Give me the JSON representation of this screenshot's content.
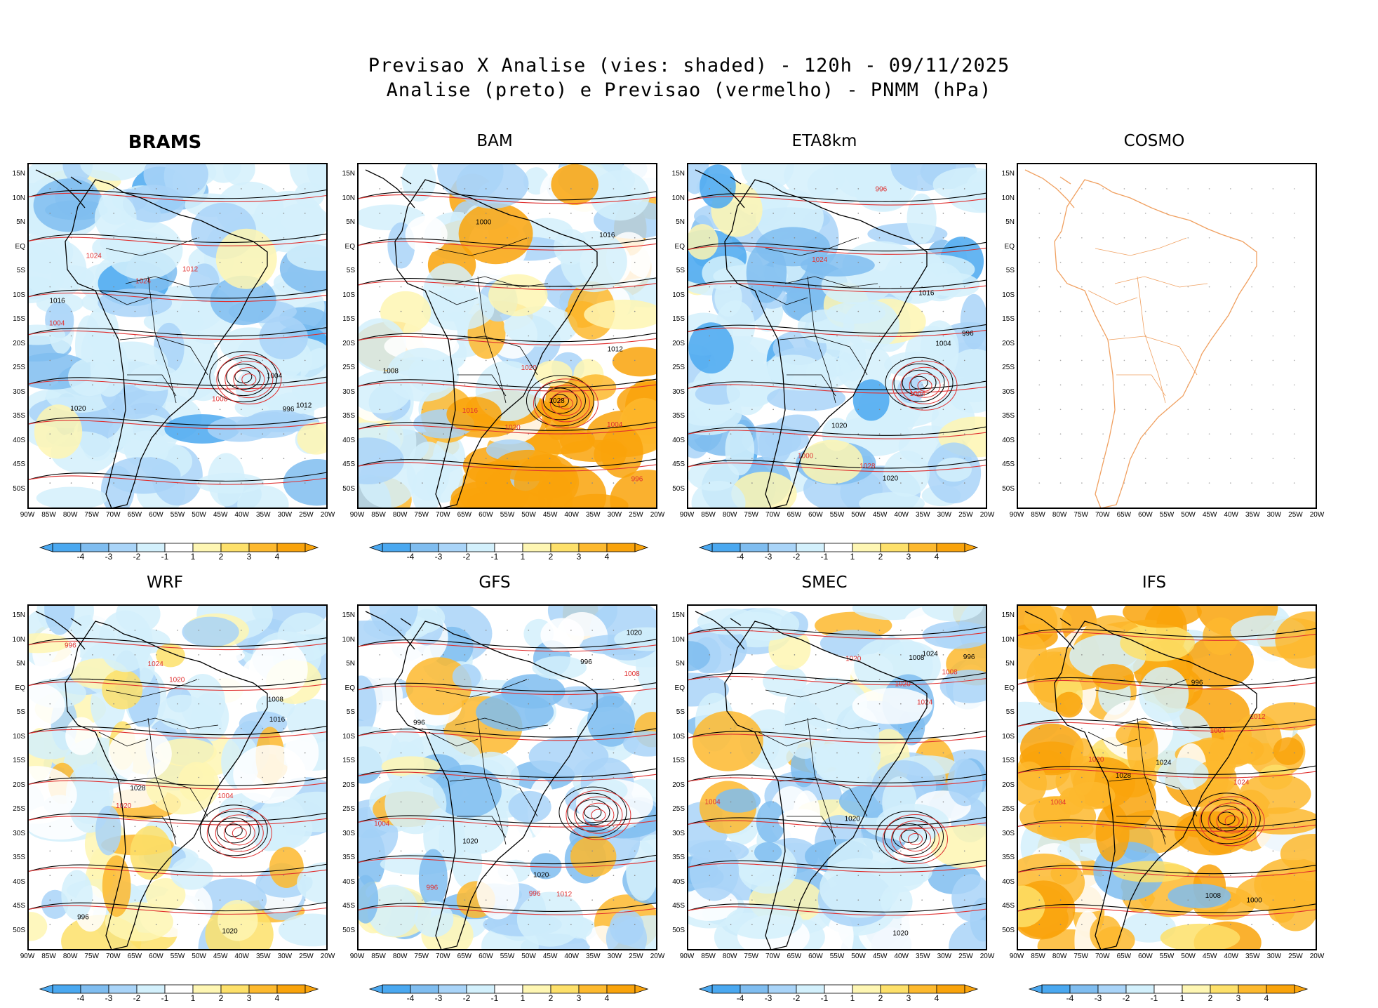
{
  "figure": {
    "title_line1": "Previsao X Analise (vies: shaded) - 120h - 09/11/2025",
    "title_line2": "Analise (preto) e Previsao (vermelho) - PNMM (hPa)"
  },
  "axes": {
    "lat_labels": [
      "15N",
      "10N",
      "5N",
      "EQ",
      "5S",
      "10S",
      "15S",
      "20S",
      "25S",
      "30S",
      "35S",
      "40S",
      "45S",
      "50S"
    ],
    "lon_labels": [
      "90W",
      "85W",
      "80W",
      "75W",
      "70W",
      "65W",
      "60W",
      "55W",
      "50W",
      "45W",
      "40W",
      "35W",
      "30W",
      "25W",
      "20W"
    ]
  },
  "colorbar": {
    "labels": [
      "-4",
      "-3",
      "-2",
      "-1",
      "1",
      "2",
      "3",
      "4"
    ],
    "colors": [
      "#4aa8f0",
      "#7fbdf0",
      "#a9d4f8",
      "#d3f0fc",
      "#ffffff",
      "#fef6b3",
      "#fde06a",
      "#fdb92e",
      "#f9a30b"
    ]
  },
  "contour_colors": {
    "analysis": "#000000",
    "forecast": "#e03030",
    "coast_cosmo": "#f0a060"
  },
  "isobar_labels": [
    "996",
    "1000",
    "1004",
    "1008",
    "1012",
    "1016",
    "1020",
    "1024",
    "1028"
  ],
  "panels": [
    {
      "name": "BRAMS",
      "bias": "negative",
      "has_data": true
    },
    {
      "name": "BAM",
      "bias": "mixed-positive-south",
      "has_data": true
    },
    {
      "name": "ETA8km",
      "bias": "negative",
      "has_data": true
    },
    {
      "name": "COSMO",
      "bias": "none",
      "has_data": false
    },
    {
      "name": "WRF",
      "bias": "mixed",
      "has_data": true
    },
    {
      "name": "GFS",
      "bias": "mixed-negative",
      "has_data": true
    },
    {
      "name": "SMEC",
      "bias": "mixed-negative",
      "has_data": true
    },
    {
      "name": "IFS",
      "bias": "positive",
      "has_data": true
    }
  ]
}
